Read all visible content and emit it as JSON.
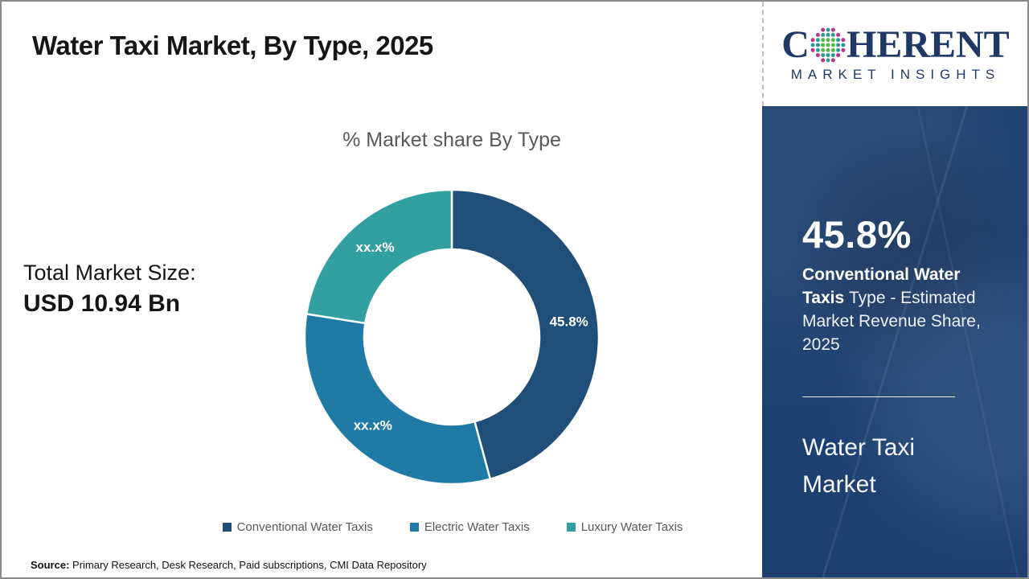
{
  "header": {
    "title": "Water Taxi Market, By Type, 2025"
  },
  "logo": {
    "wordmark_prefix": "C",
    "wordmark_suffix": "HERENT",
    "tagline": "MARKET INSIGHTS",
    "brand_colors": {
      "navy": "#1f3864",
      "teal": "#2e9b9b",
      "green": "#5cb54a",
      "magenta": "#bf3090"
    }
  },
  "left_panel": {
    "total_label": "Total Market Size:",
    "total_value": "USD 10.94 Bn"
  },
  "chart_data": {
    "type": "pie",
    "subtype": "donut",
    "title": "% Market share By Type",
    "categories": [
      "Conventional Water Taxis",
      "Electric Water Taxis",
      "Luxury Water Taxis"
    ],
    "values": [
      45.8,
      31.7,
      22.5
    ],
    "labels": [
      "45.8%",
      "xx.x%",
      "xx.x%"
    ],
    "colors": [
      "#1f4e79",
      "#1f7aa6",
      "#32a0a0"
    ],
    "start_angle_deg": 0,
    "direction": "clockwise",
    "legend_position": "bottom"
  },
  "sidebar": {
    "stat_value": "45.8%",
    "stat_desc_bold": "Conventional Water Taxis ",
    "stat_desc_rest": "Type - Estimated Market Revenue Share, 2025",
    "report_title_line1": "Water Taxi",
    "report_title_line2": "Market",
    "background_color": "#1d4070"
  },
  "footer": {
    "source_label": "Source:",
    "source_text": " Primary Research, Desk Research, Paid subscriptions, CMI Data Repository"
  }
}
